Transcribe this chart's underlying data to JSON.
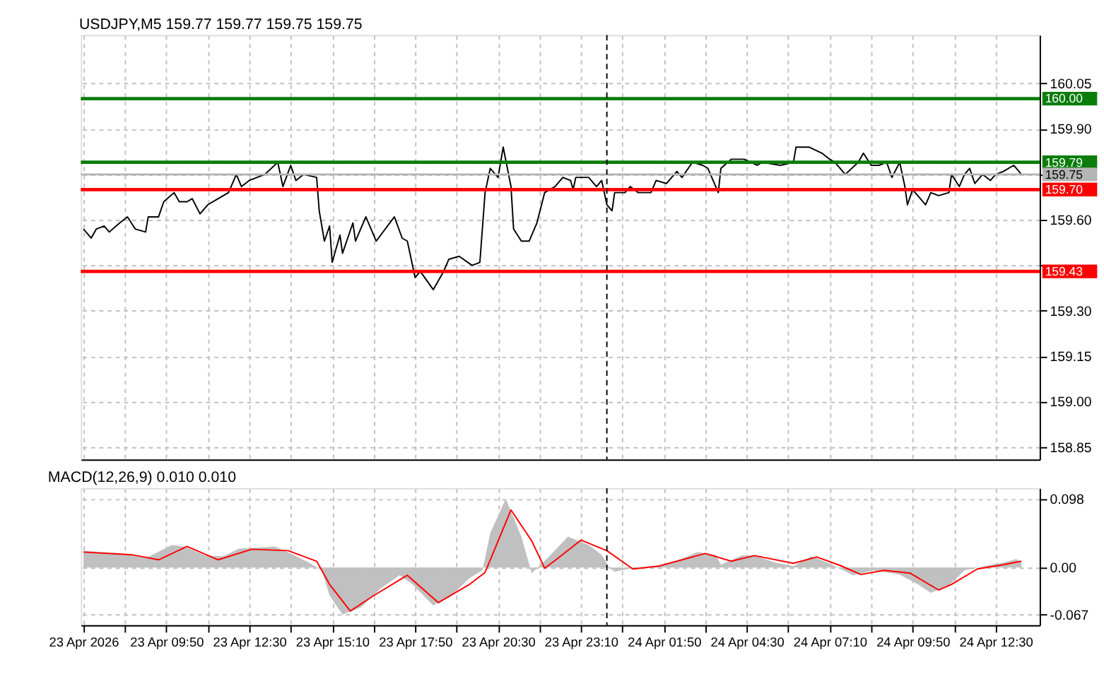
{
  "chart_data": [
    {
      "type": "line",
      "title": "USDJPY,M5  159.77 159.77 159.75 159.75",
      "grid": true,
      "tick_labels": "y",
      "xlim": [
        "2026-04-23T07:05",
        "2026-04-24T13:55"
      ],
      "xticks": [
        {
          "value": "2026-04-23T07:10",
          "label": null
        },
        {
          "value": "2026-04-23T08:30",
          "label": null
        },
        {
          "value": "2026-04-23T09:50",
          "label": null
        },
        {
          "value": "2026-04-23T11:10",
          "label": null
        },
        {
          "value": "2026-04-23T12:30",
          "label": null
        },
        {
          "value": "2026-04-23T13:50",
          "label": null
        },
        {
          "value": "2026-04-23T15:10",
          "label": null
        },
        {
          "value": "2026-04-23T16:30",
          "label": null
        },
        {
          "value": "2026-04-23T17:50",
          "label": null
        },
        {
          "value": "2026-04-23T19:10",
          "label": null
        },
        {
          "value": "2026-04-23T20:30",
          "label": null
        },
        {
          "value": "2026-04-23T21:50",
          "label": null
        },
        {
          "value": "2026-04-23T23:10",
          "label": null
        },
        {
          "value": "2026-04-24T00:30",
          "label": null
        },
        {
          "value": "2026-04-24T01:50",
          "label": null
        },
        {
          "value": "2026-04-24T03:10",
          "label": null
        },
        {
          "value": "2026-04-24T04:30",
          "label": null
        },
        {
          "value": "2026-04-24T05:50",
          "label": null
        },
        {
          "value": "2026-04-24T07:10",
          "label": null
        },
        {
          "value": "2026-04-24T08:30",
          "label": null
        },
        {
          "value": "2026-04-24T09:50",
          "label": null
        },
        {
          "value": "2026-04-24T11:10",
          "label": null
        },
        {
          "value": "2026-04-24T12:30",
          "label": null
        }
      ],
      "ylim": [
        158.81,
        160.21
      ],
      "yticks": [
        158.85,
        {
          "value": 159.0,
          "label": "159.00"
        },
        159.15,
        {
          "value": 159.3,
          "label": "159.30"
        },
        {
          "value": 159.45,
          "label": null
        },
        {
          "value": 159.6,
          "label": "159.60"
        },
        {
          "value": 159.75,
          "label": null
        },
        {
          "value": 159.9,
          "label": "159.90"
        },
        160.05
      ],
      "ref_lines": [
        {
          "axis": "y",
          "value": 160.0,
          "label": "160.00",
          "color": "#0a7d0a"
        },
        {
          "axis": "y",
          "value": 159.79,
          "label": "159.79",
          "color": "#0a7d0a"
        },
        {
          "axis": "y",
          "value": 159.75,
          "label": "159.75",
          "color": "#b4b4b4"
        },
        {
          "axis": "y",
          "value": 159.7,
          "label": "159.70",
          "color": "#ff0000"
        },
        {
          "axis": "y",
          "value": 159.43,
          "label": "159.43",
          "color": "#ff0000"
        },
        {
          "axis": "x",
          "value": "2026-04-24T00:00",
          "color": "#000000",
          "line_style": "dashed"
        }
      ],
      "series": [
        {
          "color": "#000000",
          "type": "line",
          "x": [
            "2026-04-23T07:10",
            "2026-04-23T07:25",
            "2026-04-23T07:35",
            "2026-04-23T07:50",
            "2026-04-23T08:00",
            "2026-04-23T08:20",
            "2026-04-23T08:35",
            "2026-04-23T08:50",
            "2026-04-23T09:10",
            "2026-04-23T09:15",
            "2026-04-23T09:35",
            "2026-04-23T09:45",
            "2026-04-23T10:05",
            "2026-04-23T10:15",
            "2026-04-23T10:30",
            "2026-04-23T10:40",
            "2026-04-23T10:55",
            "2026-04-23T11:10",
            "2026-04-23T11:30",
            "2026-04-23T11:50",
            "2026-04-23T12:05",
            "2026-04-23T12:15",
            "2026-04-23T12:30",
            "2026-04-23T12:45",
            "2026-04-23T13:00",
            "2026-04-23T13:25",
            "2026-04-23T13:35",
            "2026-04-23T13:50",
            "2026-04-23T14:00",
            "2026-04-23T14:15",
            "2026-04-23T14:40",
            "2026-04-23T14:45",
            "2026-04-23T14:55",
            "2026-04-23T15:05",
            "2026-04-23T15:10",
            "2026-04-23T15:25",
            "2026-04-23T15:30",
            "2026-04-23T15:50",
            "2026-04-23T15:55",
            "2026-04-23T16:15",
            "2026-04-23T16:35",
            "2026-04-23T17:10",
            "2026-04-23T17:25",
            "2026-04-23T17:35",
            "2026-04-23T17:50",
            "2026-04-23T18:00",
            "2026-04-23T18:25",
            "2026-04-23T18:45",
            "2026-04-23T18:55",
            "2026-04-23T19:15",
            "2026-04-23T19:40",
            "2026-04-23T19:55",
            "2026-04-23T20:05",
            "2026-04-23T20:15",
            "2026-04-23T20:30",
            "2026-04-23T20:40",
            "2026-04-23T20:55",
            "2026-04-23T21:00",
            "2026-04-23T21:15",
            "2026-04-23T21:30",
            "2026-04-23T21:45",
            "2026-04-23T22:00",
            "2026-04-23T22:20",
            "2026-04-23T22:35",
            "2026-04-23T22:50",
            "2026-04-23T22:55",
            "2026-04-23T23:00",
            "2026-04-23T23:25",
            "2026-04-23T23:40",
            "2026-04-23T23:50",
            "2026-04-24T00:00",
            "2026-04-24T00:10",
            "2026-04-24T00:15",
            "2026-04-24T00:35",
            "2026-04-24T00:45",
            "2026-04-24T01:00",
            "2026-04-24T01:25",
            "2026-04-24T01:35",
            "2026-04-24T01:55",
            "2026-04-24T02:15",
            "2026-04-24T02:25",
            "2026-04-24T02:45",
            "2026-04-24T03:05",
            "2026-04-24T03:15",
            "2026-04-24T03:35",
            "2026-04-24T03:40",
            "2026-04-24T04:00",
            "2026-04-24T04:25",
            "2026-04-24T04:50",
            "2026-04-24T05:00",
            "2026-04-24T05:35",
            "2026-04-24T06:00",
            "2026-04-24T06:05",
            "2026-04-24T06:30",
            "2026-04-24T06:55",
            "2026-04-24T07:10",
            "2026-04-24T07:20",
            "2026-04-24T07:40",
            "2026-04-24T08:05",
            "2026-04-24T08:15",
            "2026-04-24T08:30",
            "2026-04-24T08:45",
            "2026-04-24T09:00",
            "2026-04-24T09:10",
            "2026-04-24T09:25",
            "2026-04-24T09:35",
            "2026-04-24T09:40",
            "2026-04-24T09:50",
            "2026-04-24T10:15",
            "2026-04-24T10:25",
            "2026-04-24T10:40",
            "2026-04-24T11:00",
            "2026-04-24T11:05",
            "2026-04-24T11:20",
            "2026-04-24T11:30",
            "2026-04-24T11:40",
            "2026-04-24T11:50",
            "2026-04-24T12:05",
            "2026-04-24T12:20",
            "2026-04-24T12:30",
            "2026-04-24T12:45",
            "2026-04-24T13:05",
            "2026-04-24T13:20"
          ],
          "values": [
            159.57,
            159.54,
            159.57,
            159.58,
            159.56,
            159.59,
            159.61,
            159.57,
            159.56,
            159.61,
            159.61,
            159.66,
            159.69,
            159.66,
            159.66,
            159.67,
            159.62,
            159.65,
            159.67,
            159.69,
            159.75,
            159.71,
            159.73,
            159.74,
            159.75,
            159.79,
            159.71,
            159.78,
            159.73,
            159.75,
            159.74,
            159.63,
            159.53,
            159.58,
            159.46,
            159.55,
            159.49,
            159.59,
            159.53,
            159.61,
            159.53,
            159.61,
            159.54,
            159.53,
            159.41,
            159.43,
            159.37,
            159.43,
            159.47,
            159.48,
            159.45,
            159.46,
            159.69,
            159.77,
            159.74,
            159.84,
            159.71,
            159.57,
            159.53,
            159.53,
            159.59,
            159.69,
            159.71,
            159.74,
            159.73,
            159.7,
            159.74,
            159.74,
            159.71,
            159.73,
            159.65,
            159.63,
            159.69,
            159.69,
            159.71,
            159.69,
            159.69,
            159.73,
            159.72,
            159.76,
            159.74,
            159.79,
            159.78,
            159.77,
            159.69,
            159.77,
            159.8,
            159.8,
            159.78,
            159.79,
            159.78,
            159.79,
            159.84,
            159.84,
            159.82,
            159.8,
            159.79,
            159.75,
            159.79,
            159.82,
            159.78,
            159.78,
            159.79,
            159.74,
            159.79,
            159.71,
            159.65,
            159.7,
            159.65,
            159.69,
            159.68,
            159.69,
            159.75,
            159.71,
            159.75,
            159.77,
            159.72,
            159.75,
            159.73,
            159.75,
            159.76,
            159.78,
            159.75
          ]
        }
      ]
    },
    {
      "type": "line",
      "title": "MACD(12,26,9) 0.010 0.010",
      "grid": true,
      "xlim": [
        "2026-04-23T07:05",
        "2026-04-24T13:55"
      ],
      "xticks": [
        {
          "value": "2026-04-23T07:10",
          "label": "23 Apr 2026"
        },
        {
          "value": "2026-04-23T08:30",
          "label": null
        },
        {
          "value": "2026-04-23T09:50",
          "label": "23 Apr 09:50"
        },
        {
          "value": "2026-04-23T11:10",
          "label": null
        },
        {
          "value": "2026-04-23T12:30",
          "label": "23 Apr 12:30"
        },
        {
          "value": "2026-04-23T13:50",
          "label": null
        },
        {
          "value": "2026-04-23T15:10",
          "label": "23 Apr 15:10"
        },
        {
          "value": "2026-04-23T16:30",
          "label": null
        },
        {
          "value": "2026-04-23T17:50",
          "label": "23 Apr 17:50"
        },
        {
          "value": "2026-04-23T19:10",
          "label": null
        },
        {
          "value": "2026-04-23T20:30",
          "label": "23 Apr 20:30"
        },
        {
          "value": "2026-04-23T21:50",
          "label": null
        },
        {
          "value": "2026-04-23T23:10",
          "label": "23 Apr 23:10"
        },
        {
          "value": "2026-04-24T00:30",
          "label": null
        },
        {
          "value": "2026-04-24T01:50",
          "label": "24 Apr 01:50"
        },
        {
          "value": "2026-04-24T03:10",
          "label": null
        },
        {
          "value": "2026-04-24T04:30",
          "label": "24 Apr 04:30"
        },
        {
          "value": "2026-04-24T05:50",
          "label": null
        },
        {
          "value": "2026-04-24T07:10",
          "label": "24 Apr 07:10"
        },
        {
          "value": "2026-04-24T08:30",
          "label": null
        },
        {
          "value": "2026-04-24T09:50",
          "label": "24 Apr 09:50"
        },
        {
          "value": "2026-04-24T11:10",
          "label": null
        },
        {
          "value": "2026-04-24T12:30",
          "label": "24 Apr 12:30"
        }
      ],
      "ylim": [
        -0.082,
        0.113
      ],
      "yticks": [
        -0.067,
        {
          "value": 0,
          "label": "0.00"
        },
        0.098
      ],
      "ref_lines": [
        {
          "axis": "x",
          "value": "2026-04-24T00:00",
          "color": "#000000",
          "line_style": "dashed"
        }
      ],
      "series": [
        {
          "type": "area",
          "color": "#c0c0c0",
          "x": [
            "2026-04-23T07:10",
            "2026-04-23T08:25",
            "2026-04-23T09:10",
            "2026-04-23T10:00",
            "2026-04-23T10:25",
            "2026-04-23T11:05",
            "2026-04-23T11:40",
            "2026-04-23T12:10",
            "2026-04-23T13:20",
            "2026-04-23T13:50",
            "2026-04-23T14:25",
            "2026-04-23T14:50",
            "2026-04-23T15:05",
            "2026-04-23T15:30",
            "2026-04-23T16:05",
            "2026-04-23T16:45",
            "2026-04-23T17:20",
            "2026-04-23T17:45",
            "2026-04-23T18:25",
            "2026-04-23T19:00",
            "2026-04-23T19:35",
            "2026-04-23T20:00",
            "2026-04-23T20:15",
            "2026-04-23T20:45",
            "2026-04-23T21:15",
            "2026-04-23T21:35",
            "2026-04-23T22:05",
            "2026-04-23T22:45",
            "2026-04-23T23:25",
            "2026-04-23T23:50",
            "2026-04-24T00:05",
            "2026-04-24T00:15",
            "2026-04-24T00:40",
            "2026-04-24T01:40",
            "2026-04-24T02:20",
            "2026-04-24T02:55",
            "2026-04-24T03:30",
            "2026-04-24T03:40",
            "2026-04-24T04:20",
            "2026-04-24T04:45",
            "2026-04-24T05:25",
            "2026-04-24T06:00",
            "2026-04-24T06:35",
            "2026-04-24T07:15",
            "2026-04-24T07:55",
            "2026-04-24T08:35",
            "2026-04-24T09:25",
            "2026-04-24T10:00",
            "2026-04-24T10:25",
            "2026-04-24T11:00",
            "2026-04-24T11:30",
            "2026-04-24T12:15",
            "2026-04-24T12:45",
            "2026-04-24T13:10",
            "2026-04-24T13:20"
          ],
          "values": [
            0.024,
            0.02,
            0.013,
            0.032,
            0.03,
            0.017,
            0.016,
            0.027,
            0.03,
            0.02,
            0.007,
            -0.004,
            -0.04,
            -0.067,
            -0.057,
            -0.029,
            -0.011,
            -0.024,
            -0.054,
            -0.04,
            -0.015,
            -0.004,
            0.049,
            0.098,
            0.044,
            -0.008,
            0.013,
            0.044,
            0.032,
            0.018,
            0,
            -0.006,
            -0.002,
            0.003,
            0.011,
            0.022,
            0.018,
            0.004,
            0.017,
            0.017,
            0.007,
            0.002,
            0.016,
            0.004,
            -0.011,
            -0.004,
            -0.01,
            -0.024,
            -0.036,
            -0.026,
            -0.004,
            0.003,
            0.007,
            0.012,
            0.007
          ]
        },
        {
          "type": "line",
          "color": "#ff0000",
          "x": [
            "2026-04-23T07:10",
            "2026-04-23T08:45",
            "2026-04-23T09:35",
            "2026-04-23T10:30",
            "2026-04-23T11:30",
            "2026-04-23T12:35",
            "2026-04-23T13:45",
            "2026-04-23T14:40",
            "2026-04-23T15:05",
            "2026-04-23T15:45",
            "2026-04-23T16:30",
            "2026-04-23T17:35",
            "2026-04-23T18:35",
            "2026-04-23T19:35",
            "2026-04-23T20:05",
            "2026-04-23T20:55",
            "2026-04-23T21:35",
            "2026-04-23T22:00",
            "2026-04-23T22:20",
            "2026-04-23T23:10",
            "2026-04-24T00:00",
            "2026-04-24T00:50",
            "2026-04-24T01:40",
            "2026-04-24T03:10",
            "2026-04-24T04:00",
            "2026-04-24T04:45",
            "2026-04-24T06:00",
            "2026-04-24T06:45",
            "2026-04-24T07:30",
            "2026-04-24T08:10",
            "2026-04-24T08:55",
            "2026-04-24T09:45",
            "2026-04-24T10:40",
            "2026-04-24T11:05",
            "2026-04-24T11:55",
            "2026-04-24T12:45",
            "2026-04-24T13:20"
          ],
          "values": [
            0.022,
            0.018,
            0.011,
            0.03,
            0.011,
            0.026,
            0.024,
            0.009,
            -0.024,
            -0.062,
            -0.04,
            -0.011,
            -0.05,
            -0.024,
            -0.007,
            0.082,
            0.038,
            -0.001,
            0.01,
            0.039,
            0.024,
            -0.002,
            0.002,
            0.02,
            0.009,
            0.017,
            0.006,
            0.015,
            0.003,
            -0.01,
            -0.004,
            -0.008,
            -0.032,
            -0.024,
            -0.002,
            0.004,
            0.009
          ]
        }
      ]
    }
  ]
}
